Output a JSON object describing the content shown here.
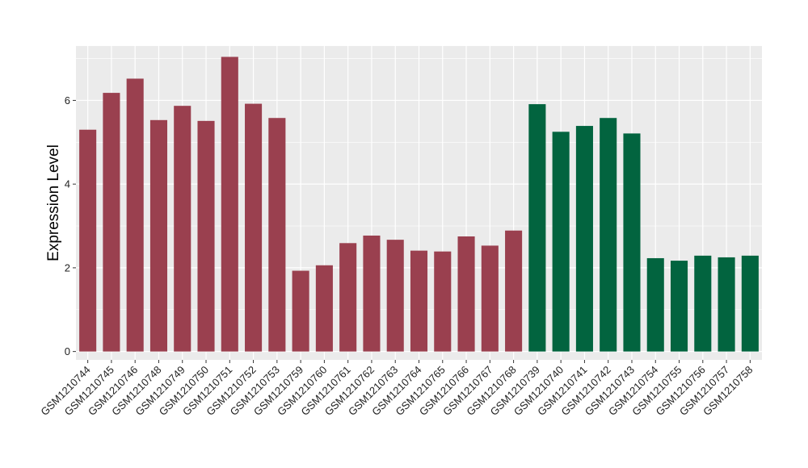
{
  "chart_data": {
    "type": "bar",
    "title": "",
    "xlabel": "",
    "ylabel": "Expression Level",
    "ylim": [
      -0.2,
      7.3
    ],
    "yticks": [
      0,
      2,
      4,
      6
    ],
    "grid": true,
    "legend": "none",
    "categories": [
      "GSM1210744",
      "GSM1210745",
      "GSM1210746",
      "GSM1210748",
      "GSM1210749",
      "GSM1210750",
      "GSM1210751",
      "GSM1210752",
      "GSM1210753",
      "GSM1210759",
      "GSM1210760",
      "GSM1210761",
      "GSM1210762",
      "GSM1210763",
      "GSM1210764",
      "GSM1210765",
      "GSM1210766",
      "GSM1210767",
      "GSM1210768",
      "GSM1210739",
      "GSM1210740",
      "GSM1210741",
      "GSM1210742",
      "GSM1210743",
      "GSM1210754",
      "GSM1210755",
      "GSM1210756",
      "GSM1210757",
      "GSM1210758"
    ],
    "values": [
      5.3,
      6.18,
      6.52,
      5.53,
      5.87,
      5.51,
      7.04,
      5.92,
      5.58,
      1.93,
      2.06,
      2.59,
      2.77,
      2.67,
      2.41,
      2.39,
      2.75,
      2.53,
      2.89,
      5.91,
      5.25,
      5.39,
      5.58,
      5.21,
      2.23,
      2.17,
      2.29,
      2.25,
      2.29
    ],
    "groups": [
      0,
      0,
      0,
      0,
      0,
      0,
      0,
      0,
      0,
      0,
      0,
      0,
      0,
      0,
      0,
      0,
      0,
      0,
      0,
      1,
      1,
      1,
      1,
      1,
      1,
      1,
      1,
      1,
      1
    ],
    "group_colors": [
      "#9a404f",
      "#02643f"
    ],
    "panel_background": "#ebebeb",
    "grid_color": "#ffffff"
  }
}
